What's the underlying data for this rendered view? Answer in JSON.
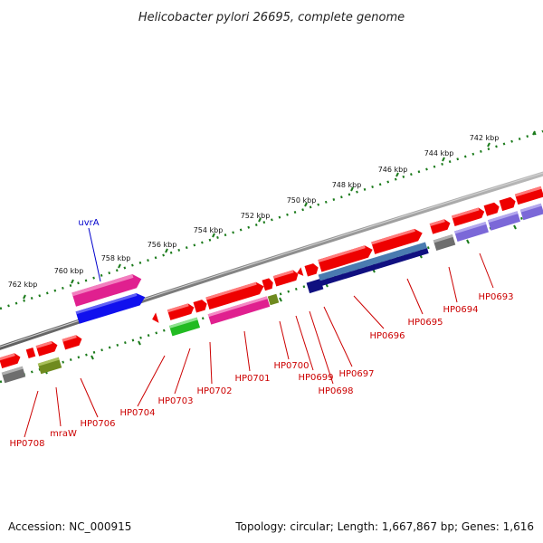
{
  "title": "Helicobacter pylori 26695, complete genome",
  "scale_labels": [
    "762 kbp",
    "760 kbp",
    "758 kbp",
    "756 kbp",
    "754 kbp",
    "752 kbp",
    "750 kbp",
    "748 kbp",
    "746 kbp",
    "744 kbp",
    "742 kbp"
  ],
  "gene_labels": [
    "uvrA",
    "HP0708",
    "mraW",
    "HP0706",
    "HP0704",
    "HP0703",
    "HP0702",
    "HP0701",
    "HP0700",
    "HP0699",
    "HP0698",
    "HP0697",
    "HP0696",
    "HP0695",
    "HP0694",
    "HP0693"
  ],
  "footer": {
    "accession": "Accession: NC_000915",
    "summary": "Topology: circular; Length: 1,667,867 bp; Genes: 1,616"
  },
  "colors": {
    "red": "#ee0000",
    "magenta": "#e0208f",
    "blue": "#1010ee",
    "navy": "#101080",
    "steel": "#4a7bb0",
    "green": "#22bb22",
    "olive": "#6f8a1f",
    "gray": "#6e6e6e",
    "lavender": "#7b68d8",
    "scale": "#1a7a1a",
    "label_red": "#cc0000",
    "label_blue": "#0000cc"
  }
}
